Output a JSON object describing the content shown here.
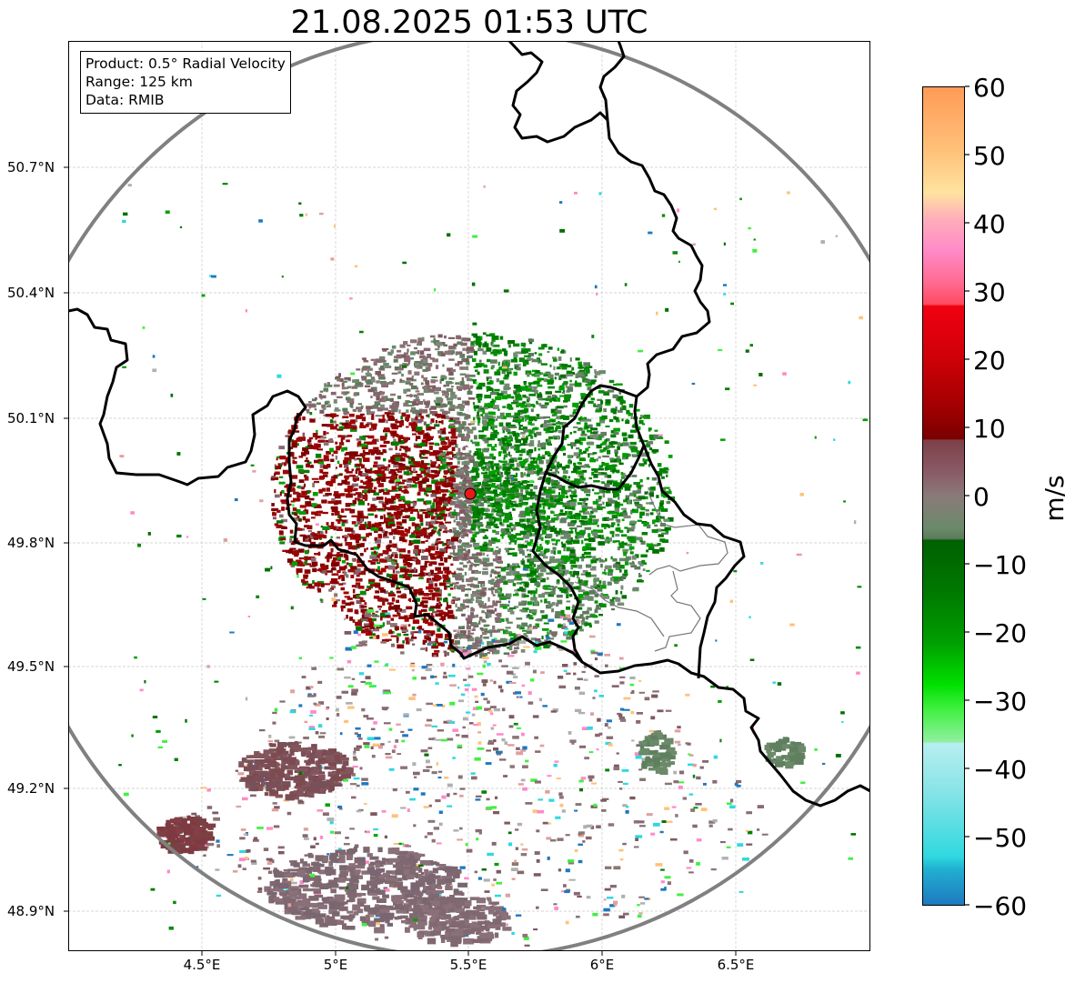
{
  "title": "21.08.2025 01:53 UTC",
  "info": {
    "product": "Product: 0.5° Radial Velocity",
    "range": "Range: 125 km",
    "data": "Data: RMIB"
  },
  "axes": {
    "x_ticks": [
      "4.5°E",
      "5°E",
      "5.5°E",
      "6°E",
      "6.5°E"
    ],
    "y_ticks": [
      "50.7°N",
      "50.4°N",
      "50.1°N",
      "49.8°N",
      "49.5°N",
      "49.2°N",
      "48.9°N"
    ]
  },
  "colorbar": {
    "unit": "m/s",
    "ticks": [
      "60",
      "50",
      "40",
      "30",
      "20",
      "10",
      "0",
      "−10",
      "−20",
      "−30",
      "−40",
      "−50",
      "−60"
    ],
    "min": -60,
    "max": 60
  },
  "radar": {
    "site_lon": 5.5,
    "site_lat": 49.915,
    "site_color": "#e8191a"
  }
}
